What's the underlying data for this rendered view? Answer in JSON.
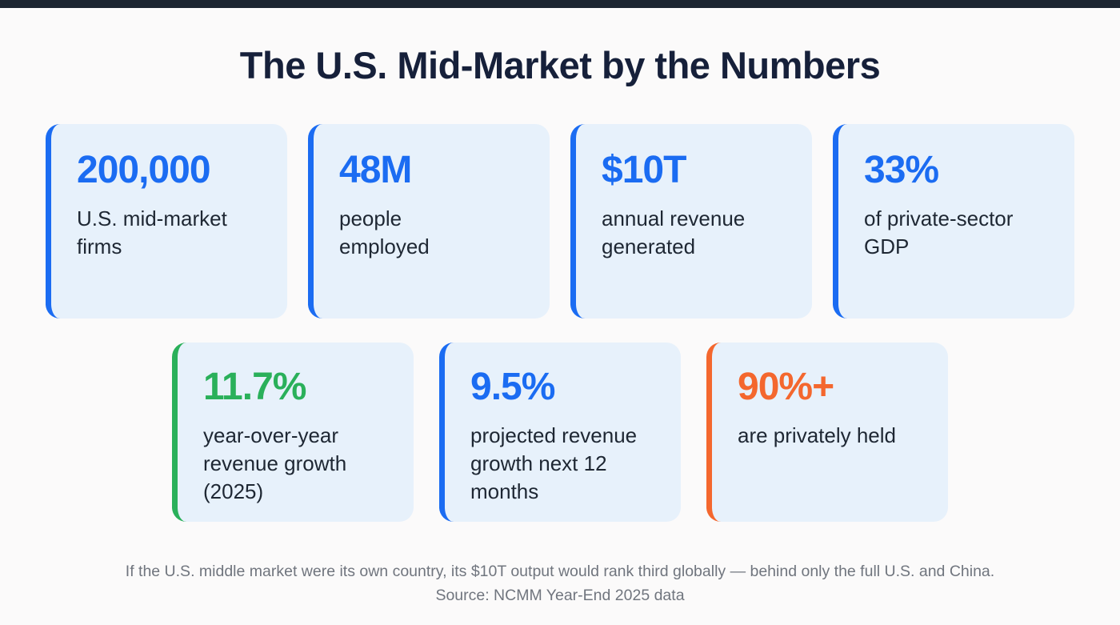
{
  "title": "The U.S. Mid-Market by the Numbers",
  "colors": {
    "blue": "#1b6cf2",
    "green": "#2ab05a",
    "orange": "#f4672e",
    "card_bg": "#e7f1fb",
    "title_text": "#16203a",
    "top_strip": "#1c2531"
  },
  "cards": [
    {
      "value": "200,000",
      "label": "U.S. mid-market\nfirms",
      "accent": "#1b6cf2"
    },
    {
      "value": "48M",
      "label": "people\nemployed",
      "accent": "#1b6cf2"
    },
    {
      "value": "$10T",
      "label": "annual revenue\ngenerated",
      "accent": "#1b6cf2"
    },
    {
      "value": "33%",
      "label": "of private-sector\nGDP",
      "accent": "#1b6cf2"
    },
    {
      "value": "11.7%",
      "label": "year-over-year\nrevenue growth\n(2025)",
      "accent": "#2ab05a"
    },
    {
      "value": "9.5%",
      "label": "projected revenue\ngrowth next 12\nmonths",
      "accent": "#1b6cf2"
    },
    {
      "value": "90%+",
      "label": "are privately held",
      "accent": "#f4672e"
    }
  ],
  "footer": {
    "note": "If the U.S. middle market were its own country, its $10T output would rank third globally — behind only the full U.S. and China.",
    "source": "Source: NCMM Year-End 2025 data"
  },
  "chart_data": {
    "type": "table",
    "title": "The U.S. Mid-Market by the Numbers",
    "stats": [
      {
        "value": "200,000",
        "label": "U.S. mid-market firms"
      },
      {
        "value": "48M",
        "label": "people employed"
      },
      {
        "value": "$10T",
        "label": "annual revenue generated"
      },
      {
        "value": "33%",
        "label": "of private-sector GDP"
      },
      {
        "value": "11.7%",
        "label": "year-over-year revenue growth (2025)"
      },
      {
        "value": "9.5%",
        "label": "projected revenue growth next 12 months"
      },
      {
        "value": "90%+",
        "label": "are privately held"
      }
    ],
    "notes": [
      "If the U.S. middle market were its own country, its $10T output would rank third globally — behind only the full U.S. and China.",
      "Source: NCMM Year-End 2025 data"
    ]
  }
}
